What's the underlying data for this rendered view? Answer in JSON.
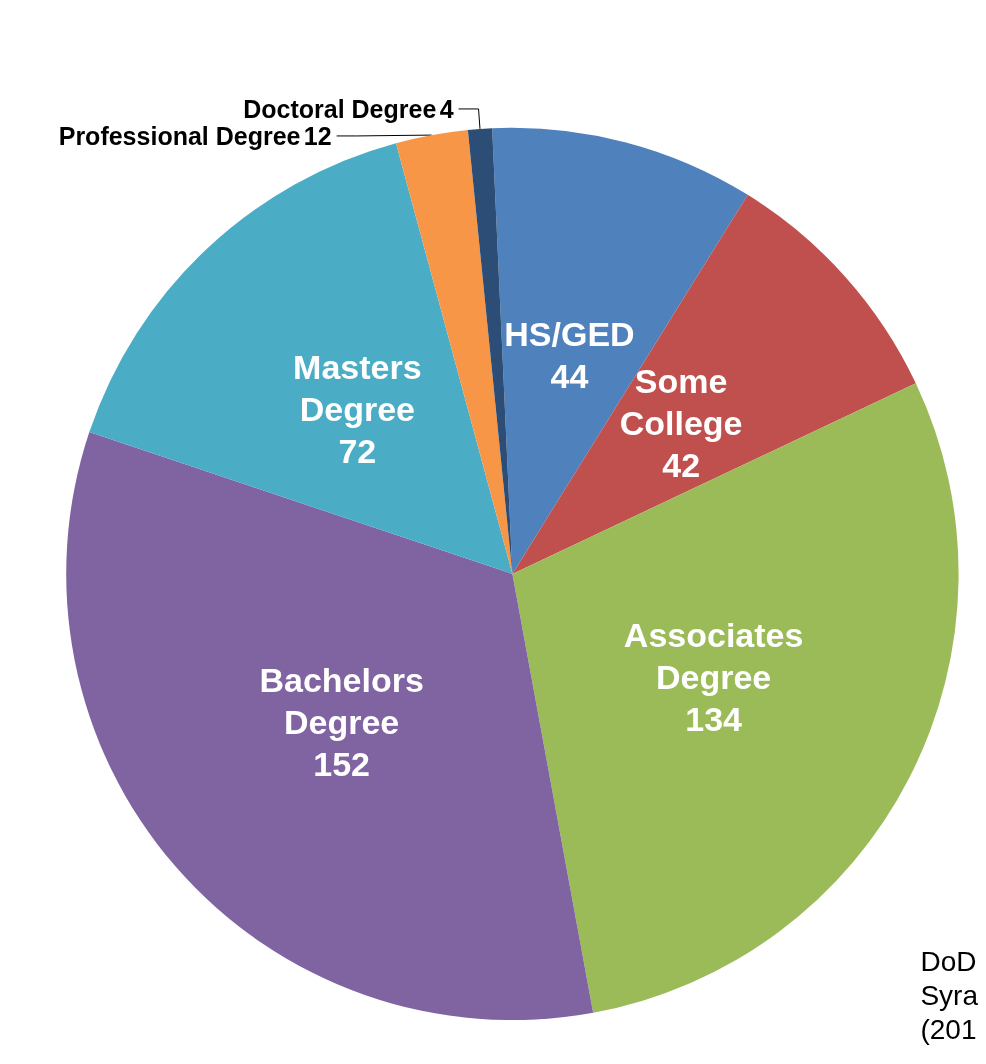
{
  "chart_data": {
    "type": "pie",
    "categories": [
      "HS/GED",
      "Some College",
      "Associates Degree",
      "Bachelors Degree",
      "Masters Degree",
      "Professional Degree",
      "Doctoral Degree"
    ],
    "values": [
      44,
      42,
      134,
      152,
      72,
      12,
      4
    ],
    "colors": [
      "#4f81bd",
      "#c0504d",
      "#9bbb59",
      "#8064a2",
      "#4bacc6",
      "#f79646",
      "#2c4d75"
    ],
    "data_labels": true,
    "annotations": [
      "DoD Syra (201"
    ]
  }
}
